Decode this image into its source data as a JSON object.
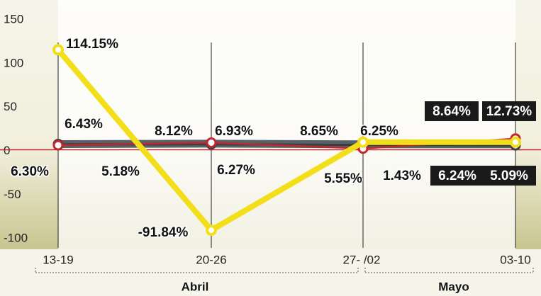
{
  "chart_data": {
    "type": "line",
    "categories": [
      "13-19",
      "20-26",
      "27- /02",
      "03-10"
    ],
    "groups": [
      {
        "label": "Abril"
      },
      {
        "label": "Mayo"
      }
    ],
    "series": [
      {
        "color": "#f2df1a",
        "values": [
          114.15,
          -91.84,
          8.65,
          8.64
        ],
        "value_labels": [
          "114.15%",
          "-91.84%",
          "8.65%",
          "8.64%"
        ]
      },
      {
        "color": "#566168",
        "values": [
          6.43,
          6.93,
          6.25,
          6.24
        ],
        "value_labels": [
          "6.43%",
          "6.93%",
          "6.25%",
          "6.24%"
        ]
      },
      {
        "color": "#c0262b",
        "values": [
          5.18,
          8.12,
          1.43,
          12.73
        ],
        "value_labels": [
          "5.18%",
          "8.12%",
          "1.43%",
          "12.73%"
        ]
      },
      {
        "color": "#3a3f44",
        "values": [
          6.3,
          6.27,
          5.55,
          5.09
        ],
        "value_labels": [
          "6.30%",
          "6.27%",
          "5.55%",
          "5.09%"
        ]
      }
    ],
    "ylim": [
      -112,
      171
    ],
    "yticks": [
      150,
      100,
      50,
      0,
      -50,
      -100
    ]
  }
}
